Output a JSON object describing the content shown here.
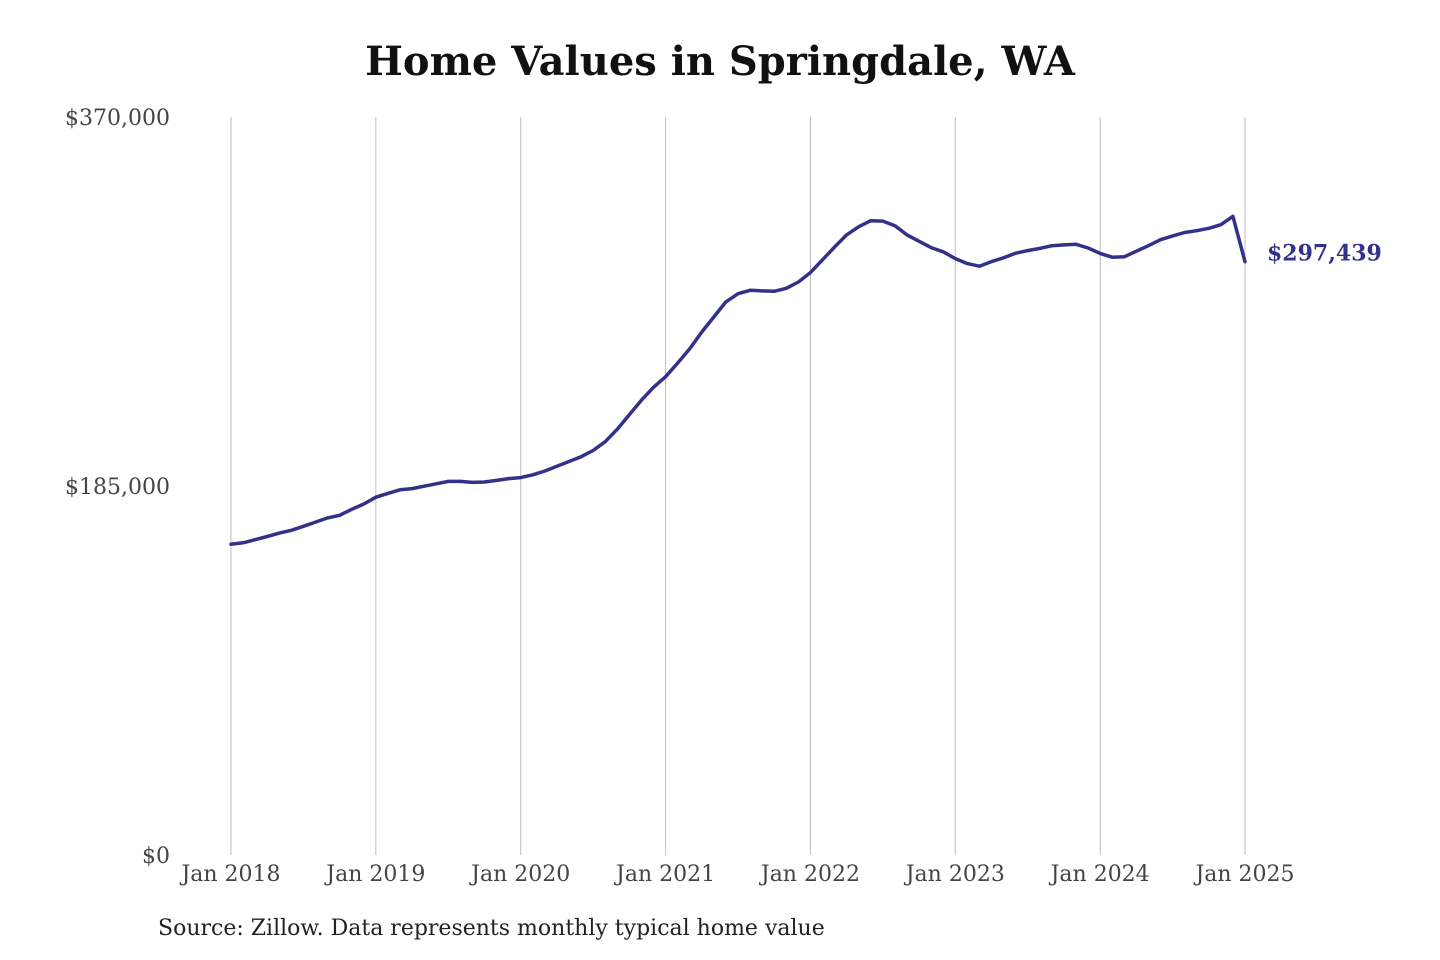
{
  "chart_data": {
    "type": "line",
    "title": "Home Values in Springdale, WA",
    "xlabel": "",
    "ylabel": "",
    "ylim": [
      0,
      370000
    ],
    "y_ticks": [
      0,
      185000,
      370000
    ],
    "y_tick_labels": [
      "$0",
      "$185,000",
      "$370,000"
    ],
    "x_ticks": [
      "2018-01",
      "2019-01",
      "2020-01",
      "2021-01",
      "2022-01",
      "2023-01",
      "2024-01",
      "2025-01"
    ],
    "x_tick_labels": [
      "Jan 2018",
      "Jan 2019",
      "Jan 2020",
      "Jan 2021",
      "Jan 2022",
      "Jan 2023",
      "Jan 2024",
      "Jan 2025"
    ],
    "grid": "vertical lines at x ticks",
    "line_color": "#33318a",
    "end_label": "$297,439",
    "series": [
      {
        "points": [
          [
            "2018-01",
            155800
          ],
          [
            "2018-02",
            156500
          ],
          [
            "2018-03",
            158100
          ],
          [
            "2018-04",
            159700
          ],
          [
            "2018-05",
            161400
          ],
          [
            "2018-06",
            162800
          ],
          [
            "2018-07",
            164800
          ],
          [
            "2018-08",
            166900
          ],
          [
            "2018-09",
            169000
          ],
          [
            "2018-10",
            170300
          ],
          [
            "2018-11",
            173300
          ],
          [
            "2018-12",
            176000
          ],
          [
            "2019-01",
            179400
          ],
          [
            "2019-02",
            181300
          ],
          [
            "2019-03",
            183100
          ],
          [
            "2019-04",
            183700
          ],
          [
            "2019-05",
            184900
          ],
          [
            "2019-06",
            186100
          ],
          [
            "2019-07",
            187300
          ],
          [
            "2019-08",
            187300
          ],
          [
            "2019-09",
            186800
          ],
          [
            "2019-10",
            187000
          ],
          [
            "2019-11",
            187800
          ],
          [
            "2019-12",
            188700
          ],
          [
            "2020-01",
            189200
          ],
          [
            "2020-02",
            190600
          ],
          [
            "2020-03",
            192500
          ],
          [
            "2020-04",
            194900
          ],
          [
            "2020-05",
            197300
          ],
          [
            "2020-06",
            199700
          ],
          [
            "2020-07",
            202800
          ],
          [
            "2020-08",
            207200
          ],
          [
            "2020-09",
            213500
          ],
          [
            "2020-10",
            220800
          ],
          [
            "2020-11",
            228000
          ],
          [
            "2020-12",
            234500
          ],
          [
            "2021-01",
            239800
          ],
          [
            "2021-02",
            246600
          ],
          [
            "2021-03",
            253800
          ],
          [
            "2021-04",
            262200
          ],
          [
            "2021-05",
            269800
          ],
          [
            "2021-06",
            277300
          ],
          [
            "2021-07",
            281400
          ],
          [
            "2021-08",
            283100
          ],
          [
            "2021-09",
            282800
          ],
          [
            "2021-10",
            282600
          ],
          [
            "2021-11",
            284100
          ],
          [
            "2021-12",
            287300
          ],
          [
            "2022-01",
            292000
          ],
          [
            "2022-02",
            298400
          ],
          [
            "2022-03",
            304800
          ],
          [
            "2022-04",
            310900
          ],
          [
            "2022-05",
            315000
          ],
          [
            "2022-06",
            318000
          ],
          [
            "2022-07",
            317800
          ],
          [
            "2022-08",
            315500
          ],
          [
            "2022-09",
            310900
          ],
          [
            "2022-10",
            307700
          ],
          [
            "2022-11",
            304500
          ],
          [
            "2022-12",
            302400
          ],
          [
            "2023-01",
            299000
          ],
          [
            "2023-02",
            296500
          ],
          [
            "2023-03",
            295200
          ],
          [
            "2023-04",
            297500
          ],
          [
            "2023-05",
            299400
          ],
          [
            "2023-06",
            301700
          ],
          [
            "2023-07",
            303000
          ],
          [
            "2023-08",
            304100
          ],
          [
            "2023-09",
            305500
          ],
          [
            "2023-10",
            305900
          ],
          [
            "2023-11",
            306200
          ],
          [
            "2023-12",
            304300
          ],
          [
            "2024-01",
            301600
          ],
          [
            "2024-02",
            299700
          ],
          [
            "2024-03",
            299900
          ],
          [
            "2024-04",
            302700
          ],
          [
            "2024-05",
            305500
          ],
          [
            "2024-06",
            308500
          ],
          [
            "2024-07",
            310400
          ],
          [
            "2024-08",
            312100
          ],
          [
            "2024-09",
            313000
          ],
          [
            "2024-10",
            314200
          ],
          [
            "2024-11",
            316000
          ],
          [
            "2024-12",
            320200
          ],
          [
            "2025-01",
            297439
          ]
        ]
      }
    ]
  },
  "source_note": "Source: Zillow. Data represents monthly typical home value"
}
